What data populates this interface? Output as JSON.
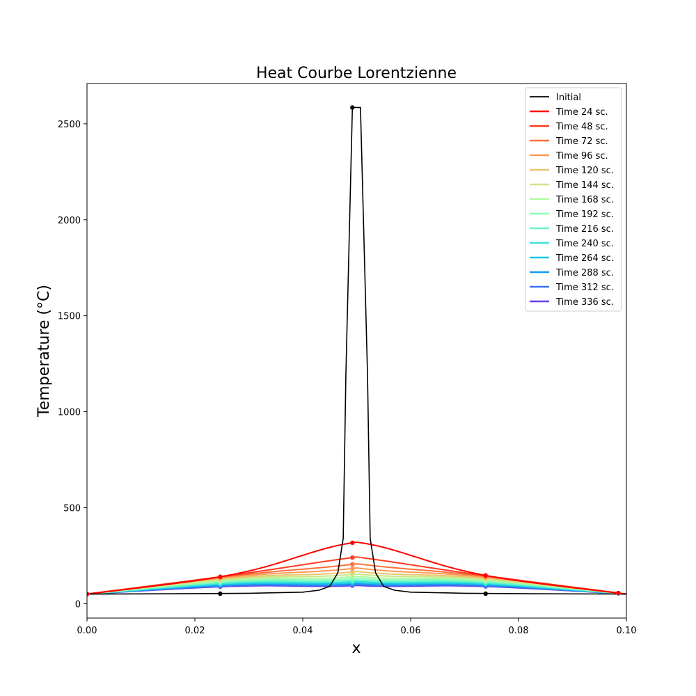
{
  "chart_data": {
    "type": "line",
    "title": "Heat Courbe Lorentzienne",
    "xlabel": "x",
    "ylabel": "Temperature (°C)",
    "xlim": [
      0.0,
      0.1
    ],
    "ylim": [
      -75,
      2710
    ],
    "xticks": [
      "0.00",
      "0.02",
      "0.04",
      "0.06",
      "0.08",
      "0.10"
    ],
    "yticks": [
      "0",
      "500",
      "1000",
      "1500",
      "2000",
      "2500"
    ],
    "grid": false,
    "legend_position": "top-right",
    "series": [
      {
        "name": "Initial",
        "color": "#000000",
        "x": [
          0.0,
          0.02,
          0.03,
          0.04,
          0.043,
          0.045,
          0.0465,
          0.0475,
          0.048,
          0.0492,
          0.0507,
          0.052,
          0.0525,
          0.0535,
          0.055,
          0.057,
          0.06,
          0.07,
          0.08,
          0.1
        ],
        "y": [
          50,
          52,
          54,
          60,
          70,
          90,
          160,
          340,
          1200,
          2585,
          2585,
          1200,
          340,
          160,
          90,
          70,
          60,
          54,
          52,
          50
        ],
        "markers_x": [
          0.0247,
          0.0492,
          0.0739
        ],
        "markers_y": [
          52,
          2585,
          52
        ]
      },
      {
        "name": "Time 24 sc.",
        "color": "#ff0000",
        "peak": 320,
        "mid": 140
      },
      {
        "name": "Time 48 sc.",
        "color": "#ff3a1e",
        "peak": 243,
        "mid": 140
      },
      {
        "name": "Time 72 sc.",
        "color": "#ff6f3b",
        "peak": 208,
        "mid": 138
      },
      {
        "name": "Time 96 sc.",
        "color": "#fd9a55",
        "peak": 186,
        "mid": 134
      },
      {
        "name": "Time 120 sc.",
        "color": "#e8c66e",
        "peak": 168,
        "mid": 129
      },
      {
        "name": "Time 144 sc.",
        "color": "#cde687",
        "peak": 155,
        "mid": 124
      },
      {
        "name": "Time 168 sc.",
        "color": "#adf99f",
        "peak": 143,
        "mid": 119
      },
      {
        "name": "Time 192 sc.",
        "color": "#8bfdb4",
        "peak": 133,
        "mid": 114
      },
      {
        "name": "Time 216 sc.",
        "color": "#63f7c8",
        "peak": 124,
        "mid": 109
      },
      {
        "name": "Time 240 sc.",
        "color": "#3ae4d9",
        "peak": 117,
        "mid": 104
      },
      {
        "name": "Time 264 sc.",
        "color": "#1ac6e6",
        "peak": 110,
        "mid": 99
      },
      {
        "name": "Time 288 sc.",
        "color": "#1799ec",
        "peak": 104,
        "mid": 95
      },
      {
        "name": "Time 312 sc.",
        "color": "#3f6ff0",
        "peak": 99,
        "mid": 91
      },
      {
        "name": "Time 336 sc.",
        "color": "#6a3cef",
        "peak": 95,
        "mid": 88
      }
    ],
    "marker_x": [
      0.0,
      0.0247,
      0.0492,
      0.0739,
      0.0985
    ],
    "boundary_value": 50
  }
}
